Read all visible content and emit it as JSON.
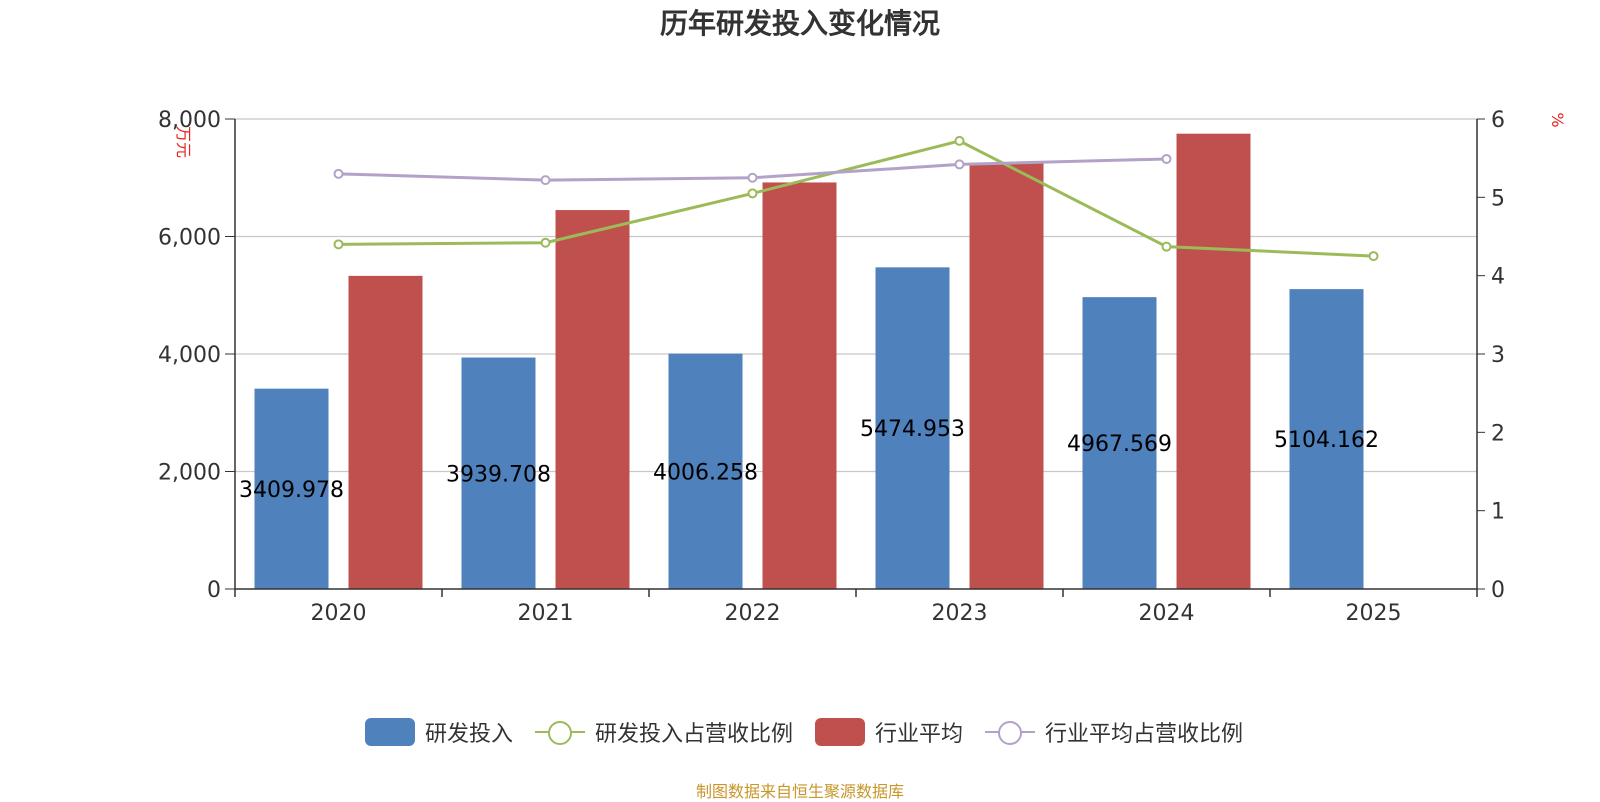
{
  "chart_data": {
    "type": "bar",
    "title": "历年研发投入变化情况",
    "categories": [
      "2020",
      "2021",
      "2022",
      "2023",
      "2024",
      "2025"
    ],
    "y_left": {
      "label": "万元",
      "ylim": [
        0,
        8000
      ],
      "ticks": [
        "0",
        "2,000",
        "4,000",
        "6,000",
        "8,000"
      ],
      "tick_values": [
        0,
        2000,
        4000,
        6000,
        8000
      ]
    },
    "y_right": {
      "label": "%",
      "ylim": [
        0,
        6
      ],
      "ticks": [
        "0",
        "1",
        "2",
        "3",
        "4",
        "5",
        "6"
      ],
      "tick_values": [
        0,
        1,
        2,
        3,
        4,
        5,
        6
      ]
    },
    "grid": true,
    "legend_position": "bottom",
    "series": [
      {
        "name": "研发投入",
        "type": "bar",
        "axis": "left",
        "color": "#4f81bd",
        "values": [
          3409.978,
          3939.708,
          4006.258,
          5474.953,
          4967.569,
          5104.162
        ],
        "labels": [
          "3409.978",
          "3939.708",
          "4006.258",
          "5474.953",
          "4967.569",
          "5104.162"
        ]
      },
      {
        "name": "研发投入占营收比例",
        "type": "line",
        "axis": "right",
        "color": "#9bbb59",
        "values": [
          4.4,
          4.42,
          5.05,
          5.72,
          4.37,
          4.25
        ]
      },
      {
        "name": "行业平均",
        "type": "bar",
        "axis": "left",
        "color": "#c0504d",
        "values": [
          5330,
          6450,
          6920,
          7250,
          7750,
          null
        ]
      },
      {
        "name": "行业平均占营收比例",
        "type": "line",
        "axis": "right",
        "color": "#b3a2c7",
        "values": [
          5.3,
          5.22,
          5.25,
          5.42,
          5.49,
          null
        ]
      }
    ]
  },
  "source_text": "制图数据来自恒生聚源数据库"
}
